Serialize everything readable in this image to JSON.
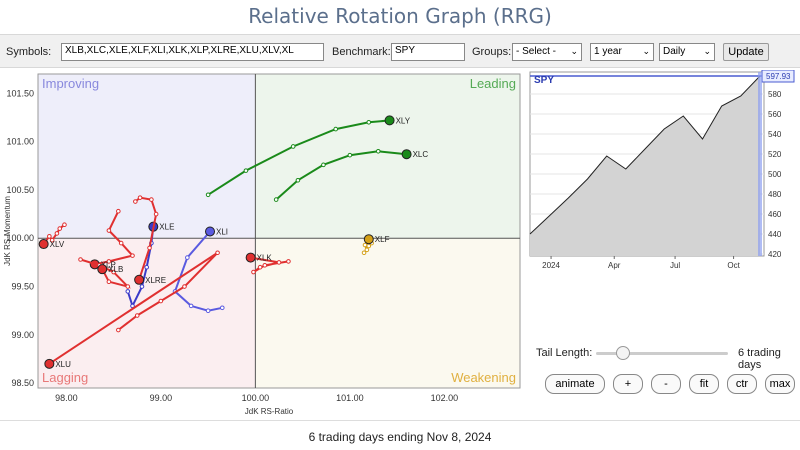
{
  "app": {
    "title": "Relative Rotation Graph (RRG)"
  },
  "controls": {
    "symbols_label": "Symbols:",
    "symbols_value": "XLB,XLC,XLE,XLF,XLI,XLK,XLP,XLRE,XLU,XLV,XL",
    "benchmark_label": "Benchmark:",
    "benchmark_value": "SPY",
    "groups_label": "Groups:",
    "groups_value": "- Select -",
    "period_value": "1 year",
    "frequency_value": "Daily",
    "update_label": "Update"
  },
  "rrg": {
    "xlabel": "JdK RS-Ratio",
    "ylabel": "JdK RS-Momentum",
    "x_ticks": [
      "98.00",
      "99.00",
      "100.00",
      "101.00",
      "102.00"
    ],
    "y_ticks": [
      "101.50",
      "101.00",
      "100.50",
      "100.00",
      "99.50",
      "99.00",
      "98.50"
    ],
    "quadrants": {
      "improving": "Improving",
      "leading": "Leading",
      "weakening": "Weakening",
      "lagging": "Lagging"
    },
    "quadrant_colors": {
      "improving": "#eeeefa",
      "leading": "#edf5ec",
      "weakening": "#fbf9ef",
      "lagging": "#fbeef0"
    }
  },
  "chart_data": [
    {
      "type": "scatter",
      "title": "",
      "xlabel": "JdK RS-Ratio",
      "ylabel": "JdK RS-Momentum",
      "xlim": [
        97.7,
        102.8
      ],
      "ylim": [
        98.45,
        101.7
      ],
      "series": [
        {
          "name": "XLY",
          "color": "#1a8a1a",
          "x": [
            99.5,
            99.9,
            100.4,
            100.85,
            101.2,
            101.42
          ],
          "y": [
            100.45,
            100.7,
            100.95,
            101.13,
            101.2,
            101.22
          ]
        },
        {
          "name": "XLC",
          "color": "#1a8a1a",
          "x": [
            100.22,
            100.45,
            100.72,
            101.0,
            101.3,
            101.6
          ],
          "y": [
            100.4,
            100.6,
            100.76,
            100.86,
            100.9,
            100.87
          ]
        },
        {
          "name": "XLF",
          "color": "#d4a017",
          "x": [
            101.15,
            101.18,
            101.16,
            101.2,
            101.23,
            101.2
          ],
          "y": [
            99.85,
            99.88,
            99.93,
            99.92,
            99.95,
            99.99
          ]
        },
        {
          "name": "XLE",
          "color": "#3a3ac8",
          "x": [
            98.65,
            98.7,
            98.8,
            98.85,
            98.9,
            98.92
          ],
          "y": [
            99.45,
            99.3,
            99.5,
            99.7,
            99.95,
            100.12
          ]
        },
        {
          "name": "XLI",
          "color": "#5a5ae0",
          "x": [
            99.65,
            99.5,
            99.32,
            99.15,
            99.28,
            99.52
          ],
          "y": [
            99.28,
            99.25,
            99.3,
            99.45,
            99.8,
            100.07
          ]
        },
        {
          "name": "XLK",
          "color": "#e03030",
          "x": [
            100.35,
            100.1,
            99.98,
            100.05,
            100.25,
            99.95
          ],
          "y": [
            99.76,
            99.72,
            99.65,
            99.7,
            99.75,
            99.8
          ]
        },
        {
          "name": "XLV",
          "color": "#e03030",
          "x": [
            97.98,
            97.93,
            97.9,
            97.85,
            97.82,
            97.76
          ],
          "y": [
            100.14,
            100.1,
            100.05,
            99.98,
            100.02,
            99.94
          ]
        },
        {
          "name": "XLP",
          "color": "#e03030",
          "x": [
            98.55,
            98.45,
            98.58,
            98.7,
            98.45,
            98.3
          ],
          "y": [
            100.28,
            100.08,
            99.95,
            99.82,
            99.76,
            99.73
          ]
        },
        {
          "name": "XLB",
          "color": "#e03030",
          "x": [
            98.15,
            98.35,
            98.5,
            98.65,
            98.45,
            98.38
          ],
          "y": [
            99.78,
            99.72,
            99.65,
            99.5,
            99.55,
            99.68
          ]
        },
        {
          "name": "XLRE",
          "color": "#e03030",
          "x": [
            98.73,
            98.78,
            98.9,
            98.95,
            98.88,
            98.77
          ],
          "y": [
            100.38,
            100.42,
            100.4,
            100.25,
            99.9,
            99.57
          ]
        },
        {
          "name": "XLU",
          "color": "#e03030",
          "x": [
            98.55,
            98.75,
            99.0,
            99.25,
            99.6,
            97.82
          ],
          "y": [
            99.05,
            99.2,
            99.35,
            99.5,
            99.85,
            98.7
          ]
        }
      ]
    },
    {
      "type": "area",
      "title": "SPY",
      "x_ticks": [
        "2024",
        "Apr",
        "Jul",
        "Oct"
      ],
      "y_ticks": [
        "420",
        "440",
        "460",
        "480",
        "500",
        "520",
        "540",
        "560",
        "580"
      ],
      "ylim": [
        418,
        602
      ],
      "last_value": "597.93",
      "x": [
        "Nov",
        "Dec",
        "Jan",
        "Feb",
        "Mar",
        "Apr",
        "May",
        "Jun",
        "Jul",
        "Aug",
        "Sep",
        "Oct",
        "Nov"
      ],
      "values": [
        440,
        458,
        476,
        495,
        518,
        505,
        525,
        545,
        558,
        535,
        568,
        578,
        598
      ]
    }
  ]
}
